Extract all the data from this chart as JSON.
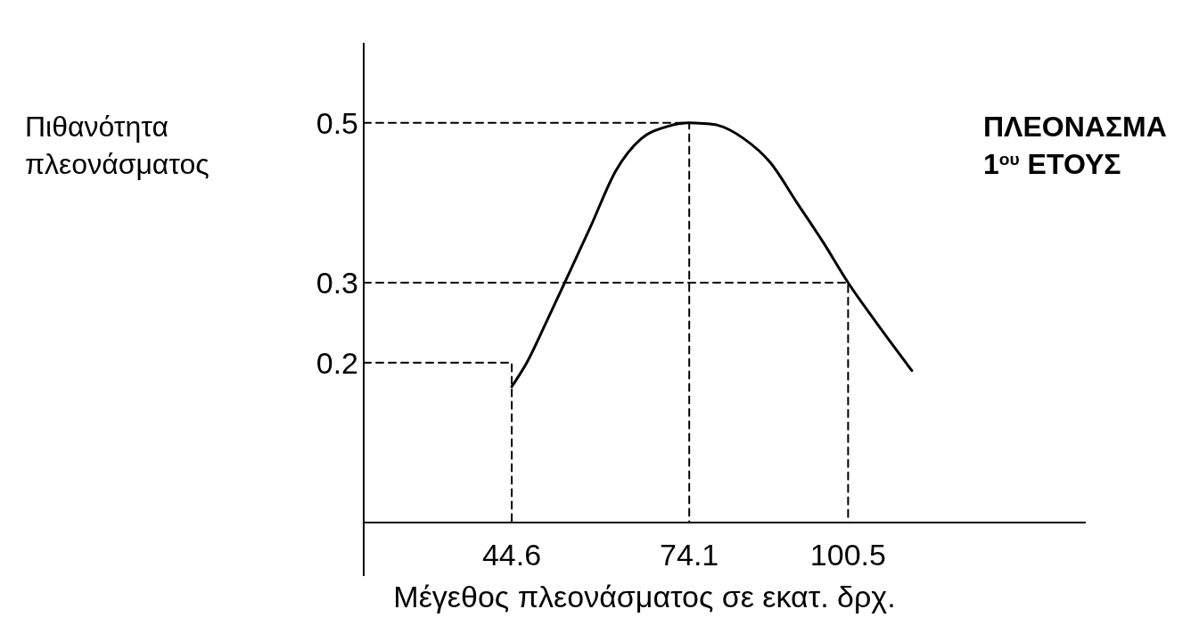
{
  "chart_data": {
    "type": "line",
    "title": "ΠΛΕΟΝΑΣΜΑ 1$^{ου}$ ΕΤΟΥΣ",
    "xlabel": "Μέγεθος πλεονάσματος σε εκατ. δρχ.",
    "ylabel": "Πιθανότητα πλεονάσματος",
    "xlim": [
      20,
      140
    ],
    "ylim": [
      0,
      0.6
    ],
    "xticks": [
      44.6,
      74.1,
      100.5
    ],
    "yticks": [
      0.2,
      0.3,
      0.5
    ],
    "series": [
      {
        "color": "#000000",
        "line_style": "solid",
        "x": [
          44.6,
          47.1,
          50.3,
          53.4,
          57.7,
          61.9,
          66.1,
          70.3,
          74.1,
          76.5,
          78.8,
          83.2,
          87.6,
          92.0,
          96.4,
          100.5,
          105.2,
          111.1
        ],
        "values": [
          0.17,
          0.2,
          0.25,
          0.3,
          0.37,
          0.44,
          0.48,
          0.495,
          0.5,
          0.499,
          0.497,
          0.48,
          0.45,
          0.4,
          0.35,
          0.3,
          0.25,
          0.19
        ]
      },
      {
        "color": "#000000",
        "line_style": "dashed",
        "x": [
          20,
          44.6,
          44.6
        ],
        "values": [
          0.2,
          0.2,
          0
        ]
      },
      {
        "color": "#000000",
        "line_style": "dashed",
        "x": [
          20,
          74.1,
          74.1
        ],
        "values": [
          0.5,
          0.5,
          0
        ]
      },
      {
        "color": "#000000",
        "line_style": "dashed",
        "x": [
          20,
          100.5,
          100.5
        ],
        "values": [
          0.3,
          0.3,
          0
        ]
      }
    ]
  }
}
